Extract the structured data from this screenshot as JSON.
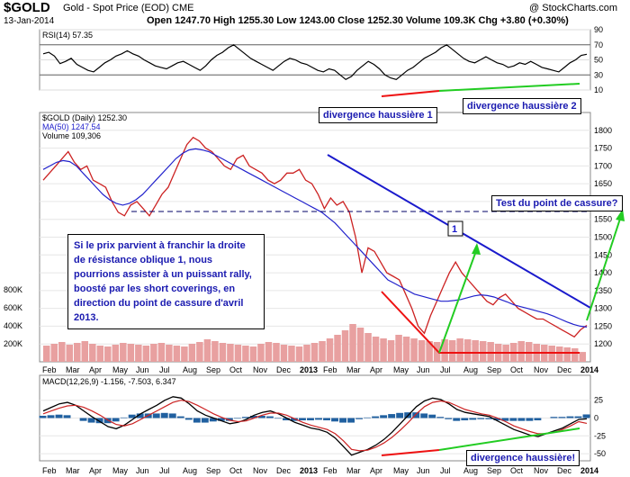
{
  "header": {
    "symbol": "$GOLD",
    "name": "Gold - Spot Price (EOD)  CME",
    "brand": "@ StockCharts.com",
    "date": "13-Jan-2014",
    "quote": "Open 1247.70  High 1255.30  Low 1243.00  Close 1252.30  Volume 109.3K  Chg +3.80 (+0.30%)"
  },
  "notes": {
    "div1": "divergence haussière 1",
    "div2": "divergence haussière 2",
    "test": "Test du point de cassure?",
    "main": "Si le prix parvient à franchir la droite de résistance oblique 1, nous pourrions assister à un puissant rally, boosté par les short coverings, en direction du point de cassure d'avril 2013.",
    "div3": "divergence haussière!",
    "line_label": "1"
  },
  "colors": {
    "price_up": "#000000",
    "price_down": "#cc2222",
    "ma": "#2222cc",
    "resistance": "#1a1acc",
    "support_red": "#ee1111",
    "arrow_green": "#22cc22",
    "dashed": "#000066",
    "volume": "#e8a0a0",
    "macd_hist": "#2060a0"
  },
  "chart_data": [
    {
      "type": "line",
      "title": "RSI(14) 57.35",
      "ylim": [
        10,
        90
      ],
      "ticks": [
        10,
        30,
        50,
        70,
        90
      ],
      "series": [
        {
          "name": "RSI(14)",
          "values": [
            58,
            60,
            55,
            45,
            48,
            52,
            44,
            40,
            36,
            34,
            40,
            46,
            50,
            55,
            58,
            62,
            58,
            55,
            50,
            46,
            42,
            40,
            38,
            42,
            46,
            48,
            44,
            40,
            36,
            42,
            50,
            56,
            60,
            66,
            70,
            64,
            58,
            52,
            48,
            44,
            40,
            36,
            42,
            48,
            52,
            50,
            46,
            44,
            40,
            36,
            34,
            38,
            36,
            30,
            24,
            28,
            36,
            42,
            48,
            44,
            38,
            30,
            26,
            24,
            30,
            36,
            40,
            46,
            52,
            56,
            60,
            66,
            70,
            64,
            58,
            52,
            48,
            46,
            50,
            54,
            50,
            46,
            44,
            40,
            42,
            46,
            44,
            48,
            44,
            40,
            38,
            36,
            34,
            40,
            46,
            50,
            56,
            57.35
          ]
        }
      ],
      "annotations": [
        "divergence haussière 1",
        "divergence haussière 2"
      ]
    },
    {
      "type": "line",
      "title": "$GOLD (Daily) 1252.30",
      "legend": [
        "MA(50) 1247.54",
        "Volume 109,306"
      ],
      "ylim": [
        1150,
        1850
      ],
      "ticks": [
        1200,
        1250,
        1300,
        1350,
        1400,
        1450,
        1500,
        1550,
        1600,
        1650,
        1700,
        1750,
        1800
      ],
      "x_ticks": [
        "Feb",
        "Mar",
        "Apr",
        "May",
        "Jun",
        "Jul",
        "Aug",
        "Sep",
        "Oct",
        "Nov",
        "Dec",
        "2013",
        "Feb",
        "Mar",
        "Apr",
        "May",
        "Jun",
        "Jul",
        "Aug",
        "Sep",
        "Oct",
        "Nov",
        "Dec",
        "2014"
      ],
      "series": [
        {
          "name": "Price",
          "values": [
            1660,
            1680,
            1700,
            1720,
            1740,
            1710,
            1690,
            1700,
            1660,
            1650,
            1640,
            1600,
            1570,
            1560,
            1590,
            1600,
            1580,
            1560,
            1590,
            1620,
            1640,
            1680,
            1720,
            1760,
            1780,
            1770,
            1750,
            1740,
            1720,
            1700,
            1690,
            1720,
            1730,
            1700,
            1690,
            1680,
            1660,
            1650,
            1660,
            1680,
            1680,
            1690,
            1660,
            1650,
            1620,
            1580,
            1610,
            1590,
            1600,
            1570,
            1500,
            1400,
            1470,
            1460,
            1430,
            1400,
            1390,
            1380,
            1340,
            1300,
            1250,
            1230,
            1280,
            1320,
            1360,
            1400,
            1430,
            1400,
            1380,
            1360,
            1340,
            1320,
            1310,
            1330,
            1340,
            1320,
            1300,
            1290,
            1280,
            1270,
            1270,
            1260,
            1250,
            1240,
            1230,
            1220,
            1240,
            1252.3
          ]
        },
        {
          "name": "MA(50)",
          "values": [
            1690,
            1700,
            1710,
            1715,
            1712,
            1700,
            1680,
            1660,
            1640,
            1620,
            1605,
            1595,
            1590,
            1595,
            1605,
            1620,
            1640,
            1660,
            1680,
            1700,
            1720,
            1735,
            1745,
            1748,
            1745,
            1740,
            1730,
            1720,
            1710,
            1700,
            1690,
            1680,
            1670,
            1660,
            1650,
            1640,
            1630,
            1620,
            1610,
            1600,
            1590,
            1580,
            1570,
            1555,
            1540,
            1520,
            1500,
            1480,
            1460,
            1440,
            1420,
            1400,
            1380,
            1370,
            1360,
            1350,
            1340,
            1335,
            1330,
            1325,
            1320,
            1320,
            1322,
            1325,
            1330,
            1335,
            1338,
            1336,
            1332,
            1325,
            1318,
            1310,
            1305,
            1300,
            1295,
            1290,
            1285,
            1278,
            1270,
            1262,
            1255,
            1250,
            1247.54
          ]
        }
      ],
      "annotations": [
        "Test du point de cassure?",
        "1"
      ]
    },
    {
      "type": "bar",
      "title": "Volume",
      "ylim": [
        0,
        900000
      ],
      "ticks": [
        "200K",
        "400K",
        "600K",
        "800K"
      ],
      "values": [
        180000,
        200000,
        220000,
        190000,
        210000,
        230000,
        200000,
        180000,
        170000,
        190000,
        210000,
        200000,
        190000,
        180000,
        200000,
        210000,
        190000,
        180000,
        170000,
        200000,
        220000,
        250000,
        230000,
        210000,
        200000,
        190000,
        180000,
        170000,
        200000,
        220000,
        210000,
        190000,
        180000,
        170000,
        190000,
        210000,
        230000,
        260000,
        300000,
        350000,
        420000,
        380000,
        320000,
        280000,
        260000,
        240000,
        300000,
        280000,
        260000,
        240000,
        230000,
        220000,
        250000,
        240000,
        260000,
        250000,
        240000,
        230000,
        220000,
        200000,
        190000,
        210000,
        230000,
        220000,
        200000,
        190000,
        180000,
        170000,
        160000,
        150000,
        109306
      ]
    },
    {
      "type": "line",
      "title": "MACD(12,26,9) -1.156, -7.503, 6.347",
      "ylim": [
        -60,
        60
      ],
      "ticks": [
        -50,
        -25,
        0,
        25
      ],
      "series": [
        {
          "name": "MACD",
          "values": [
            10,
            15,
            20,
            22,
            18,
            10,
            2,
            -5,
            -12,
            -15,
            -10,
            -2,
            6,
            12,
            18,
            25,
            30,
            28,
            20,
            10,
            4,
            0,
            -4,
            -8,
            -6,
            -2,
            4,
            8,
            10,
            6,
            0,
            -6,
            -10,
            -14,
            -16,
            -20,
            -28,
            -40,
            -52,
            -48,
            -44,
            -38,
            -30,
            -20,
            -8,
            4,
            16,
            24,
            28,
            26,
            20,
            12,
            8,
            6,
            4,
            2,
            -4,
            -10,
            -16,
            -20,
            -24,
            -26,
            -22,
            -18,
            -14,
            -8,
            -2,
            -1.156
          ]
        },
        {
          "name": "Signal",
          "values": [
            6,
            10,
            14,
            17,
            18,
            15,
            10,
            4,
            -3,
            -9,
            -11,
            -8,
            -2,
            4,
            10,
            16,
            22,
            25,
            23,
            18,
            12,
            6,
            1,
            -3,
            -5,
            -4,
            0,
            4,
            7,
            7,
            4,
            -1,
            -6,
            -10,
            -13,
            -16,
            -22,
            -32,
            -44,
            -46,
            -45,
            -41,
            -35,
            -27,
            -17,
            -6,
            6,
            16,
            22,
            24,
            22,
            17,
            12,
            9,
            6,
            4,
            0,
            -5,
            -11,
            -15,
            -19,
            -22,
            -22,
            -20,
            -16,
            -11,
            -5,
            -7.503
          ]
        }
      ],
      "annotations": [
        "divergence haussière!"
      ]
    }
  ]
}
